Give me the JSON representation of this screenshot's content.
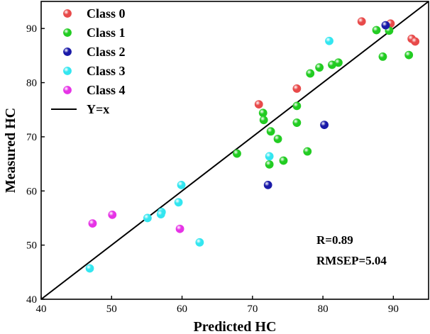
{
  "chart_data": {
    "type": "scatter",
    "title": "",
    "xlabel": "Predicted HC",
    "ylabel": "Measured HC",
    "xlim": [
      40,
      95
    ],
    "ylim": [
      40,
      95
    ],
    "xticks": [
      40,
      50,
      60,
      70,
      80,
      90
    ],
    "yticks": [
      40,
      50,
      60,
      70,
      80,
      90
    ],
    "grid": false,
    "legend_position": "top-left",
    "series": [
      {
        "name": "Class 0",
        "color": "#e84a4a",
        "points": [
          [
            85.5,
            91.3
          ],
          [
            89.6,
            90.9
          ],
          [
            92.6,
            88.1
          ],
          [
            93.1,
            87.6
          ],
          [
            76.3,
            78.9
          ],
          [
            70.9,
            76.0
          ]
        ]
      },
      {
        "name": "Class 1",
        "color": "#22cc22",
        "points": [
          [
            87.6,
            89.7
          ],
          [
            89.4,
            89.6
          ],
          [
            88.5,
            84.8
          ],
          [
            92.2,
            85.1
          ],
          [
            82.2,
            83.7
          ],
          [
            81.3,
            83.3
          ],
          [
            79.5,
            82.8
          ],
          [
            78.2,
            81.7
          ],
          [
            76.3,
            75.7
          ],
          [
            71.5,
            74.4
          ],
          [
            71.6,
            73.1
          ],
          [
            76.3,
            72.6
          ],
          [
            72.6,
            71.0
          ],
          [
            73.6,
            69.6
          ],
          [
            67.8,
            66.9
          ],
          [
            77.8,
            67.3
          ],
          [
            74.4,
            65.6
          ],
          [
            72.4,
            64.9
          ]
        ]
      },
      {
        "name": "Class 2",
        "color": "#1a1aa8",
        "points": [
          [
            88.9,
            90.6
          ],
          [
            80.2,
            72.2
          ],
          [
            72.2,
            61.1
          ]
        ]
      },
      {
        "name": "Class 3",
        "color": "#33e6f0",
        "points": [
          [
            80.9,
            87.7
          ],
          [
            72.4,
            66.4
          ],
          [
            59.9,
            61.1
          ],
          [
            59.5,
            57.9
          ],
          [
            57.1,
            56.1
          ],
          [
            57.0,
            55.7
          ],
          [
            55.1,
            55.0
          ],
          [
            62.5,
            50.5
          ],
          [
            46.9,
            45.7
          ]
        ]
      },
      {
        "name": "Class 4",
        "color": "#e633e6",
        "points": [
          [
            50.1,
            55.6
          ],
          [
            47.3,
            54.0
          ],
          [
            59.7,
            53.0
          ]
        ]
      }
    ],
    "reference_line": {
      "name": "Y=x",
      "color": "#000000",
      "from": [
        40,
        40
      ],
      "to": [
        95,
        95
      ]
    },
    "annotations": [
      "R=0.89",
      "RMSEP=5.04"
    ]
  }
}
